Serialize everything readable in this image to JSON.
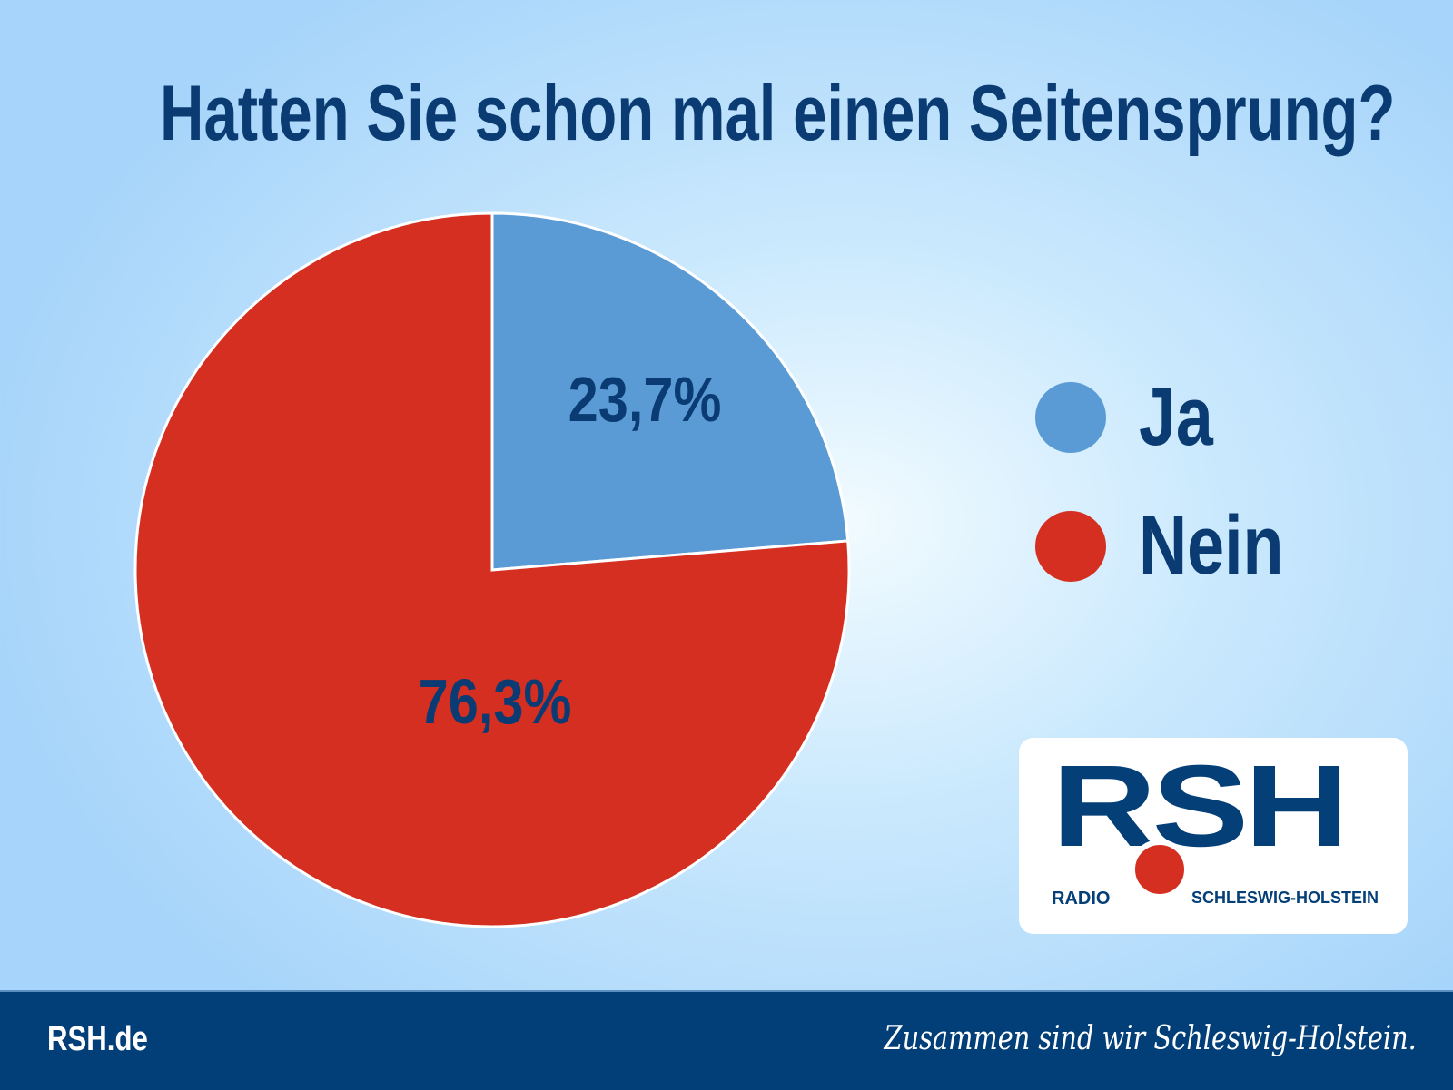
{
  "chart_data": {
    "type": "pie",
    "title": "Hatten Sie schon mal einen Seitensprung?",
    "slices": [
      {
        "name": "Ja",
        "value": 23.7,
        "label": "23,7%",
        "color": "#5b9bd5"
      },
      {
        "name": "Nein",
        "value": 76.3,
        "label": "76,3%",
        "color": "#d42f20"
      }
    ],
    "legend_placement": "right"
  },
  "logo": {
    "letters": "RSH",
    "radio": "RADIO",
    "region": "SCHLESWIG-HOLSTEIN"
  },
  "footer": {
    "url": "RSH.de",
    "slogan": "Zusammen sind wir Schleswig-Holstein."
  },
  "colors": {
    "text": "#0a3b73",
    "footer_bg": "#023f78"
  }
}
